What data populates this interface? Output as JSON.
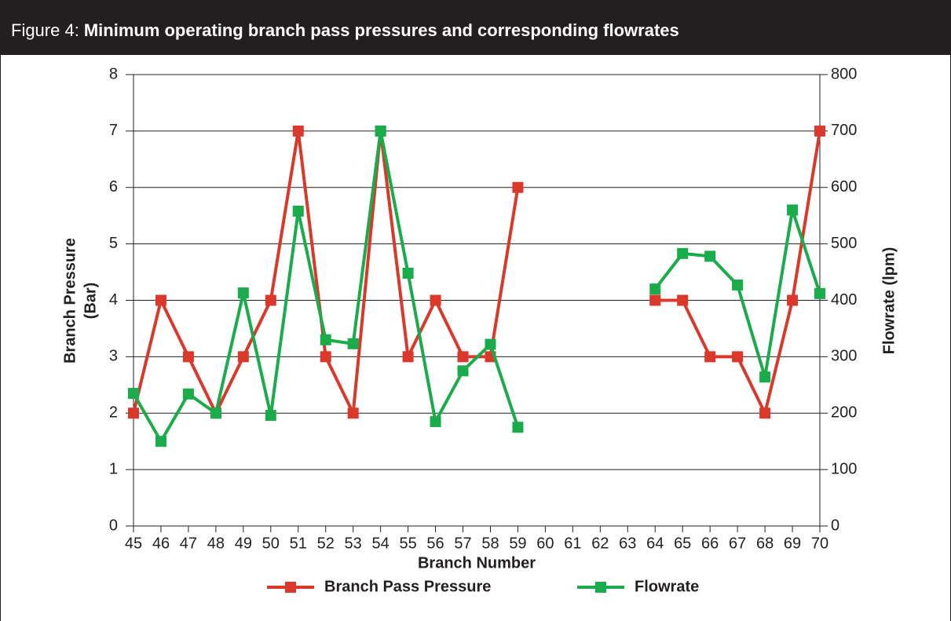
{
  "chart_data": {
    "type": "line",
    "figure_label": "Figure 4:",
    "title": "Minimum operating branch pass pressures and corresponding flowrates",
    "ylabel_lines": [
      "Branch Pressure",
      "(Bar)"
    ],
    "y2label": "Flowrate (lpm)",
    "xlabel": "Branch Number",
    "categories": [
      45,
      46,
      47,
      48,
      49,
      50,
      51,
      52,
      53,
      54,
      55,
      56,
      57,
      58,
      59,
      60,
      61,
      62,
      63,
      64,
      65,
      66,
      67,
      68,
      69,
      70
    ],
    "series": [
      {
        "name": "Branch Pass Pressure",
        "color": "#d9382a",
        "values": [
          2,
          4,
          3,
          2,
          3,
          4,
          7,
          3,
          2,
          7,
          3,
          4,
          3,
          3,
          6,
          null,
          null,
          null,
          null,
          4,
          4,
          3,
          3,
          2,
          4,
          7
        ]
      },
      {
        "name": "Flowrate",
        "color": "#1aab4a",
        "axis": "y2",
        "values": [
          235,
          150,
          234,
          200,
          413,
          196,
          558,
          330,
          323,
          700,
          448,
          185,
          275,
          322,
          175,
          null,
          null,
          null,
          null,
          420,
          483,
          478,
          427,
          264,
          560,
          412
        ]
      }
    ],
    "ylim": [
      0,
      8
    ],
    "yticks": [
      0,
      1,
      2,
      3,
      4,
      5,
      6,
      7,
      8
    ],
    "y2lim": [
      0,
      800
    ],
    "y2ticks": [
      0,
      100,
      200,
      300,
      400,
      500,
      600,
      700,
      800
    ],
    "grid": true,
    "legend": "bottom"
  }
}
